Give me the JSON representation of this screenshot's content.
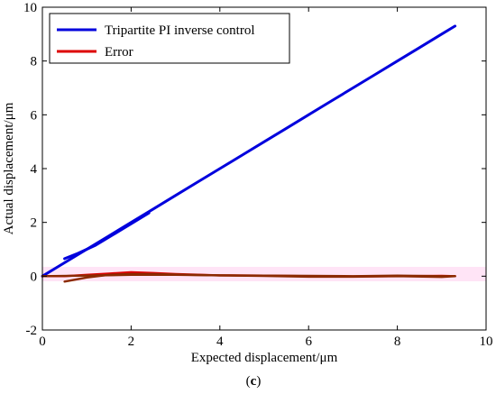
{
  "chart_data": {
    "type": "line",
    "xlabel": "Expected displacement/μm",
    "ylabel": "Actual displacement/μm",
    "caption_prefix": "(",
    "caption_letter": "c",
    "caption_suffix": ")",
    "xlim": [
      0,
      10
    ],
    "ylim": [
      -2,
      10
    ],
    "xticks": [
      0,
      2,
      4,
      6,
      8,
      10
    ],
    "yticks": [
      -2,
      0,
      2,
      4,
      6,
      8,
      10
    ],
    "grid": false,
    "legend_position": "top-left",
    "series": [
      {
        "name": "Tripartite PI inverse control",
        "color": "#0000dd",
        "legend": true,
        "x": [
          0.0,
          0.5,
          1.0,
          1.5,
          2.0,
          2.5,
          3.0,
          3.5,
          4.0,
          4.5,
          5.0,
          5.5,
          6.0,
          6.5,
          7.0,
          7.5,
          8.0,
          8.5,
          9.0,
          9.3
        ],
        "y": [
          0.0,
          0.5,
          1.0,
          1.5,
          2.0,
          2.5,
          3.0,
          3.5,
          4.0,
          4.5,
          5.0,
          5.5,
          6.0,
          6.5,
          7.0,
          7.5,
          8.0,
          8.5,
          9.0,
          9.3
        ]
      },
      {
        "name": "",
        "color": "#0000dd",
        "legend": false,
        "x": [
          0.5,
          0.8,
          1.2,
          1.6,
          2.0,
          2.4
        ],
        "y": [
          0.65,
          0.85,
          1.15,
          1.55,
          1.95,
          2.35
        ]
      },
      {
        "name": "Error",
        "color": "#dd0000",
        "legend": true,
        "x": [
          0.0,
          0.5,
          1.0,
          1.5,
          2.0,
          2.5,
          3.0,
          4.0,
          5.0,
          6.0,
          7.0,
          8.0,
          9.0,
          9.3
        ],
        "y": [
          0.0,
          0.0,
          0.05,
          0.1,
          0.15,
          0.12,
          0.08,
          0.03,
          0.02,
          0.0,
          -0.01,
          0.0,
          0.01,
          0.0
        ]
      },
      {
        "name": "",
        "color": "#8b2a00",
        "legend": false,
        "x": [
          0.5,
          1.0,
          1.5,
          2.0,
          2.5,
          3.0,
          4.0,
          5.0,
          6.0,
          7.0,
          8.0,
          9.0,
          9.3
        ],
        "y": [
          -0.2,
          -0.05,
          0.05,
          0.08,
          0.08,
          0.06,
          0.03,
          0.01,
          -0.02,
          -0.02,
          0.0,
          -0.03,
          0.0
        ]
      },
      {
        "name": "",
        "color": "#8b2a00",
        "legend": false,
        "x": [
          0.0,
          1.0,
          2.0,
          3.0,
          4.0,
          5.0,
          6.0,
          7.0,
          8.0,
          9.0,
          9.3
        ],
        "y": [
          0.0,
          0.02,
          0.05,
          0.05,
          0.03,
          0.02,
          0.01,
          0.0,
          0.02,
          0.0,
          0.0
        ]
      }
    ]
  }
}
